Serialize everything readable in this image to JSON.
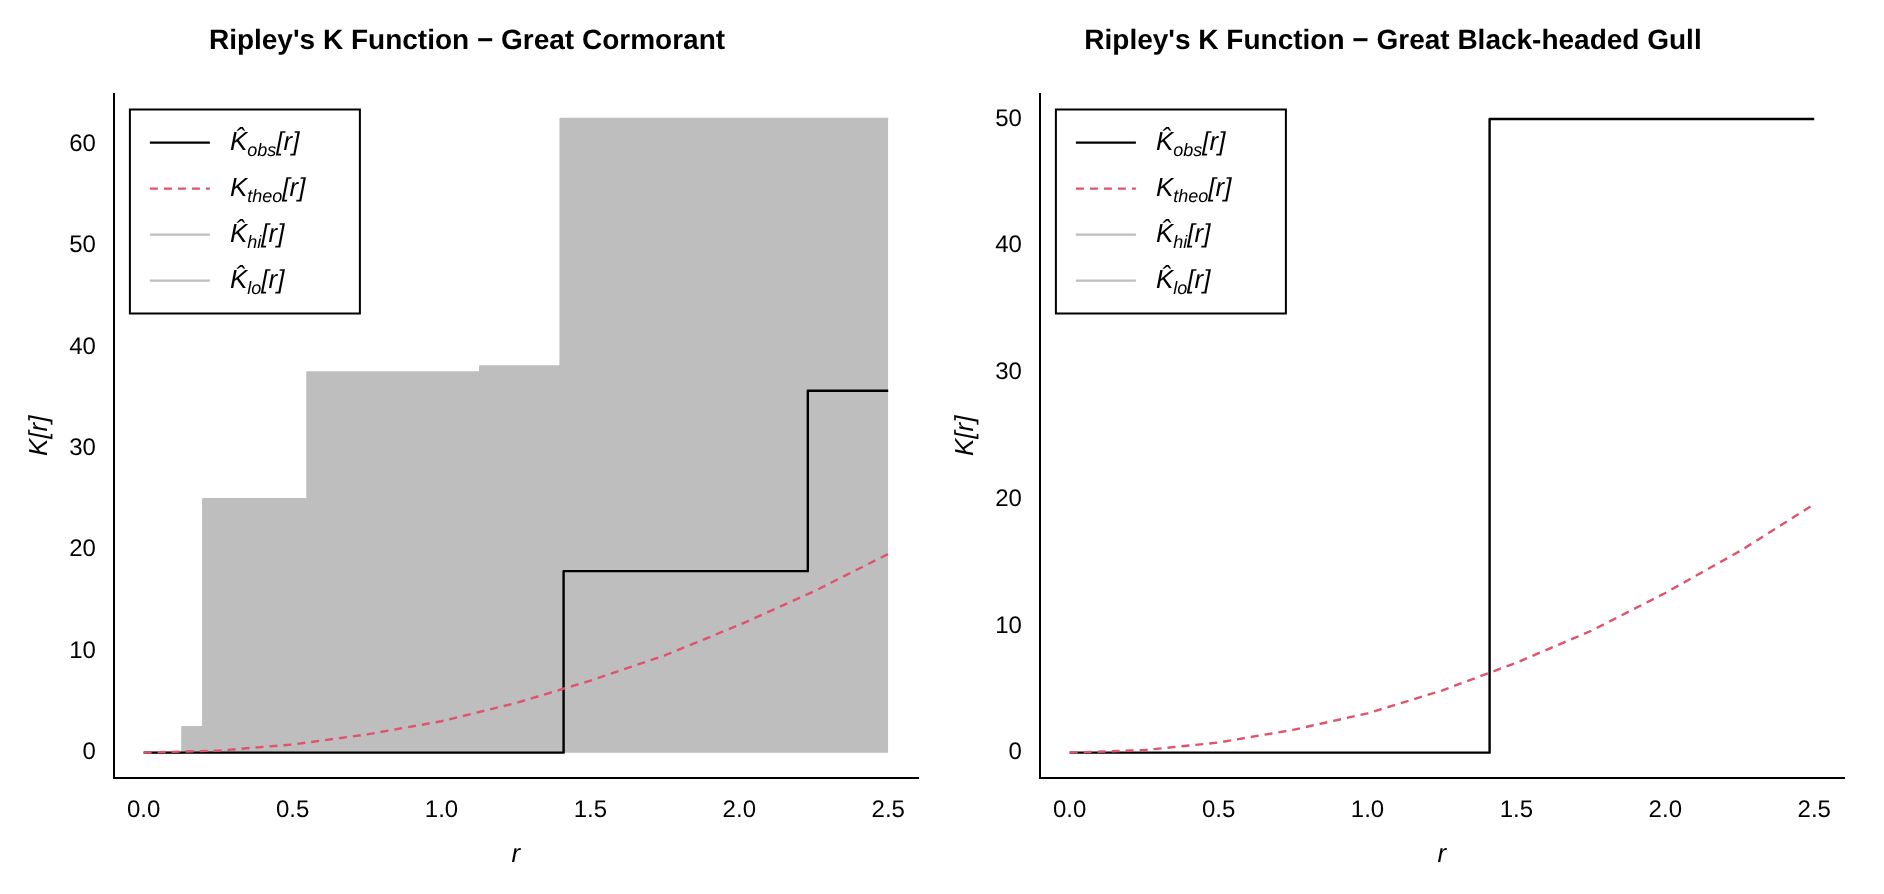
{
  "chart_data": [
    {
      "type": "step",
      "title": "Ripley's K Function − Great Cormorant",
      "xlabel": "r",
      "ylabel": "K[r]",
      "xlim": [
        -0.1,
        2.6
      ],
      "xticks": [
        {
          "value": 0,
          "label": "0.0"
        },
        {
          "value": 0.5,
          "label": "0.5"
        },
        {
          "value": 1,
          "label": "1.0"
        },
        {
          "value": 1.5,
          "label": "1.5"
        },
        {
          "value": 2,
          "label": "2.0"
        },
        {
          "value": 2.5,
          "label": "2.5"
        }
      ],
      "ylim": [
        -2.5,
        65
      ],
      "yticks": [
        0,
        10,
        20,
        30,
        40,
        50,
        60
      ],
      "legend": "top left",
      "grid": false,
      "series": [
        {
          "name": "K̂$_{hi}$[r]",
          "type": "area",
          "color": "#bebebe",
          "x": [
            0,
            0.13,
            0.13,
            0.2,
            0.2,
            0.55,
            0.55,
            1.13,
            1.13,
            1.4,
            1.4,
            2.5
          ],
          "values": [
            0,
            0,
            2.5,
            2.5,
            25,
            25,
            37.5,
            37.5,
            38.1,
            38.1,
            62.5,
            62.5
          ]
        },
        {
          "name": "K̂$_{lo}$[r]",
          "color": "#bebebe"
        },
        {
          "name": "K̂$_{obs}$[r]",
          "color": "#000000",
          "x": [
            0,
            1.41,
            2.23,
            2.5
          ],
          "values": [
            0,
            17.9,
            35.7,
            35.7
          ]
        },
        {
          "name": "K$_{theo}$[r]",
          "type": "line",
          "line_style": "dashed",
          "color": "#df536b",
          "x": [
            0,
            0.25,
            0.5,
            0.75,
            1,
            1.25,
            1.5,
            1.75,
            2,
            2.25,
            2.5
          ],
          "values": [
            0,
            0.2,
            0.8,
            1.8,
            3.1,
            4.9,
            7.1,
            9.6,
            12.6,
            15.9,
            19.6
          ]
        }
      ]
    },
    {
      "type": "step",
      "title": "Ripley's K Function − Great Black-headed Gull",
      "xlabel": "r",
      "ylabel": "K[r]",
      "xlim": [
        -0.1,
        2.6
      ],
      "xticks": [
        {
          "value": 0,
          "label": "0.0"
        },
        {
          "value": 0.5,
          "label": "0.5"
        },
        {
          "value": 1,
          "label": "1.0"
        },
        {
          "value": 1.5,
          "label": "1.5"
        },
        {
          "value": 2,
          "label": "2.0"
        },
        {
          "value": 2.5,
          "label": "2.5"
        }
      ],
      "ylim": [
        -2,
        52
      ],
      "yticks": [
        0,
        10,
        20,
        30,
        40,
        50
      ],
      "legend": "top left",
      "grid": false,
      "series": [
        {
          "name": "K̂$_{hi}$[r]",
          "color": "#bebebe"
        },
        {
          "name": "K̂$_{lo}$[r]",
          "color": "#bebebe"
        },
        {
          "name": "K̂$_{obs}$[r]",
          "color": "#000000",
          "x": [
            0,
            1.41,
            2.5
          ],
          "values": [
            0,
            50,
            50
          ]
        },
        {
          "name": "K$_{theo}$[r]",
          "type": "line",
          "line_style": "dashed",
          "color": "#df536b",
          "x": [
            0,
            0.25,
            0.5,
            0.75,
            1,
            1.25,
            1.5,
            1.75,
            2,
            2.25,
            2.5
          ],
          "values": [
            0,
            0.2,
            0.8,
            1.8,
            3.1,
            4.9,
            7.1,
            9.6,
            12.6,
            15.9,
            19.6
          ]
        }
      ]
    }
  ]
}
